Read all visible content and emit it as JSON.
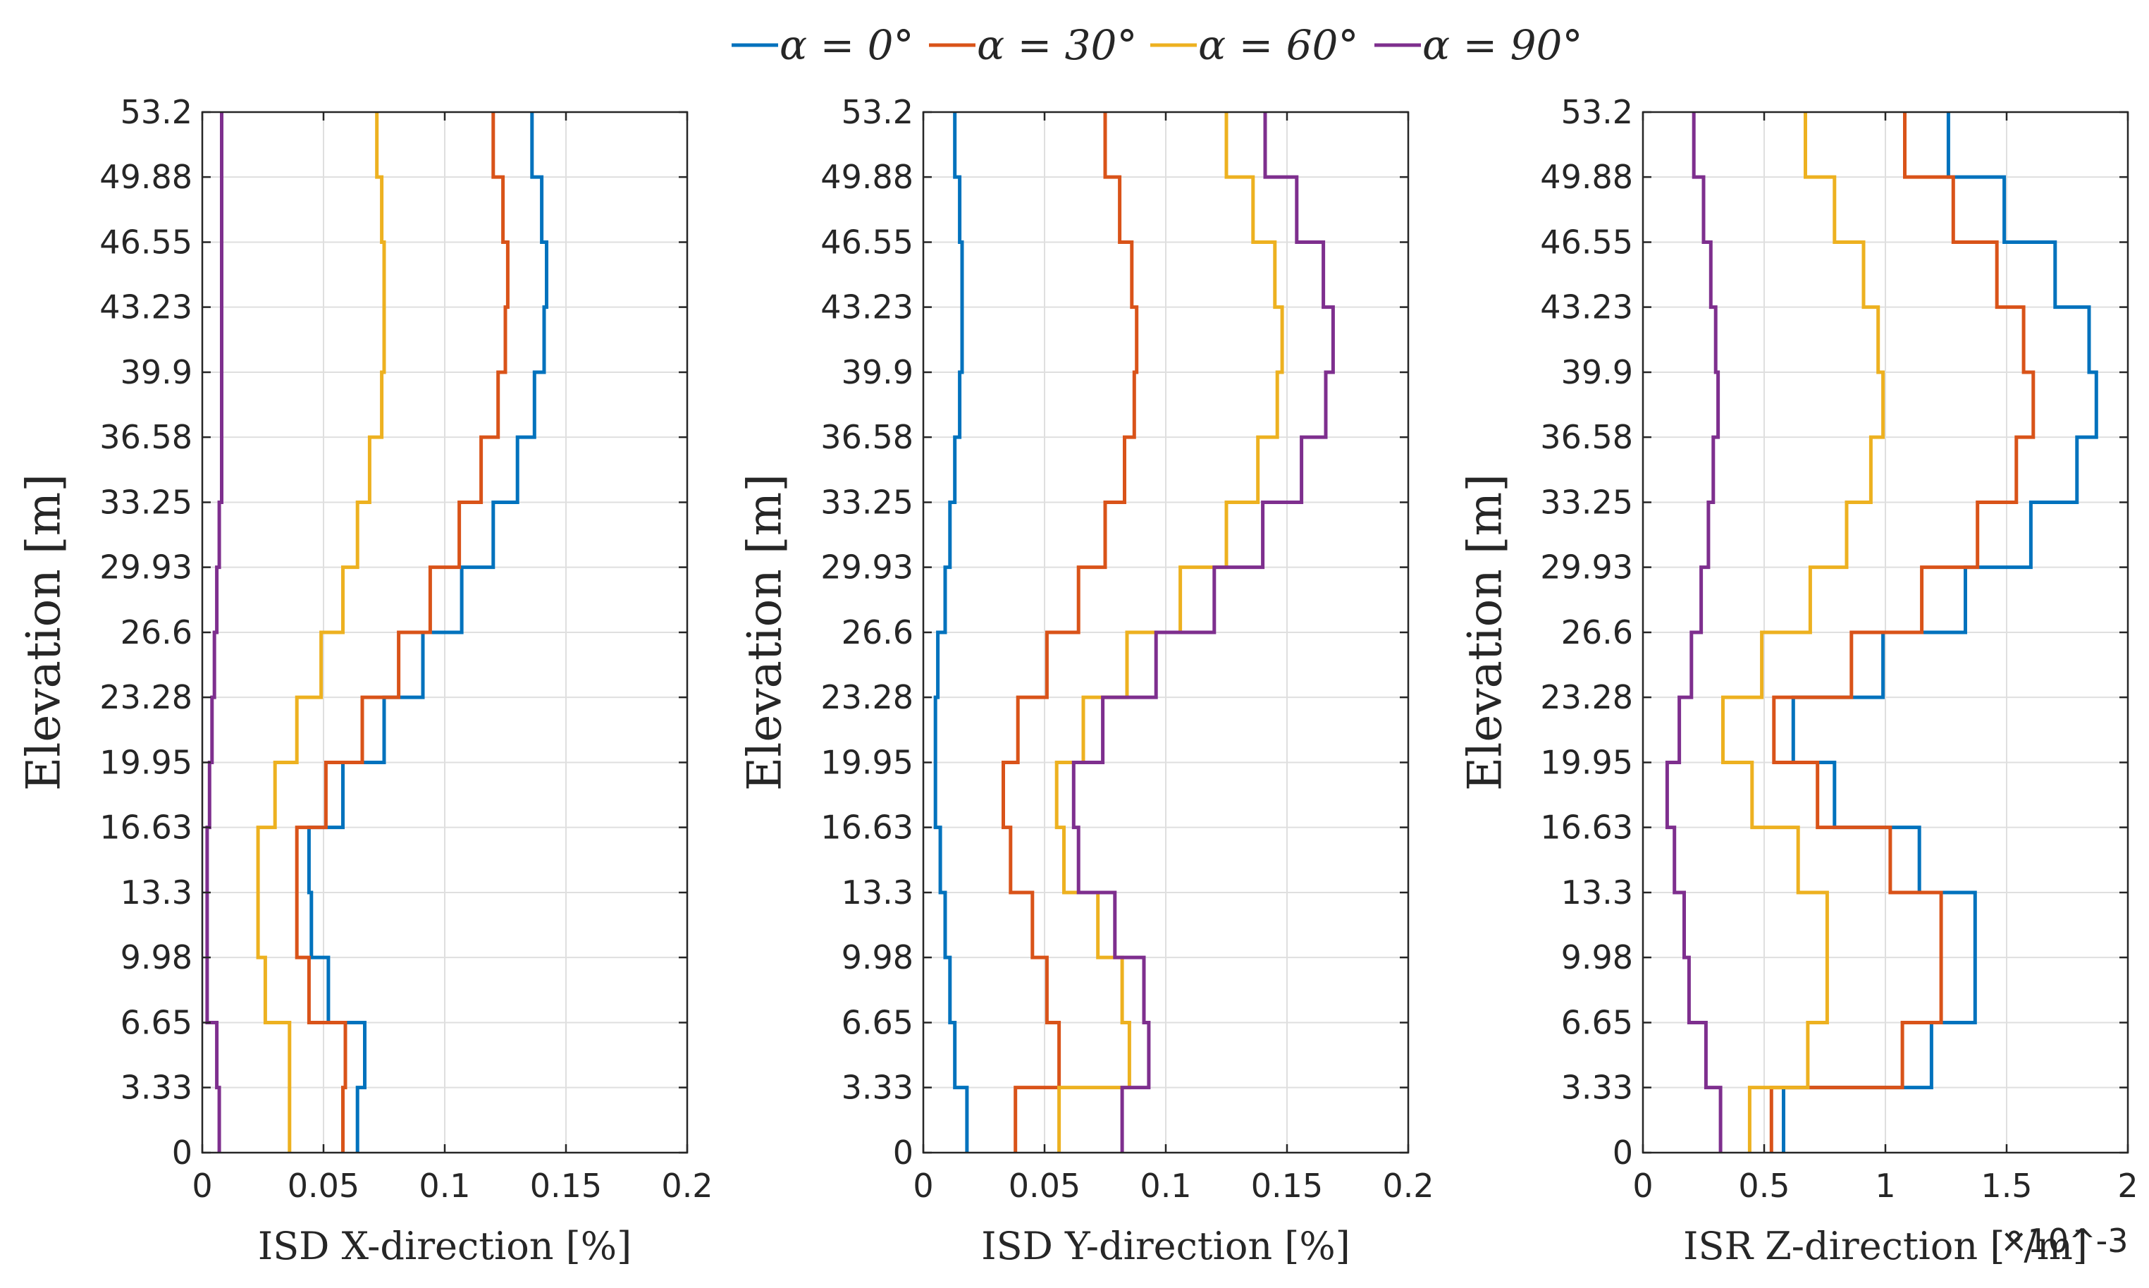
{
  "legend": {
    "items": [
      {
        "label": "α = 0°",
        "color": "#0072BD"
      },
      {
        "label": "α = 30°",
        "color": "#D95319"
      },
      {
        "label": "α = 60°",
        "color": "#EDB120"
      },
      {
        "label": "α = 90°",
        "color": "#7E2F8E"
      }
    ]
  },
  "chart_data": [
    {
      "type": "line",
      "step": true,
      "title": "",
      "xlabel": "ISD X-direction [%]",
      "ylabel": "Elevation [m]",
      "xlim": [
        0,
        0.2
      ],
      "ylim": [
        0,
        53.2
      ],
      "xticks": [
        "0",
        "0.05",
        "0.1",
        "0.15",
        "0.2"
      ],
      "yticks": [
        "0",
        "3.33",
        "6.65",
        "9.98",
        "13.3",
        "16.63",
        "19.95",
        "23.28",
        "26.6",
        "29.93",
        "33.25",
        "36.58",
        "39.9",
        "43.23",
        "46.55",
        "49.88",
        "53.2"
      ],
      "grid": true,
      "series": [
        {
          "name": "α = 0°",
          "values": [
            0.064,
            0.067,
            0.052,
            0.045,
            0.044,
            0.058,
            0.075,
            0.091,
            0.107,
            0.12,
            0.13,
            0.137,
            0.141,
            0.142,
            0.14,
            0.136
          ]
        },
        {
          "name": "α = 30°",
          "values": [
            0.058,
            0.059,
            0.044,
            0.039,
            0.039,
            0.051,
            0.066,
            0.081,
            0.094,
            0.106,
            0.115,
            0.122,
            0.125,
            0.126,
            0.124,
            0.12
          ]
        },
        {
          "name": "α = 60°",
          "values": [
            0.036,
            0.036,
            0.026,
            0.023,
            0.023,
            0.03,
            0.039,
            0.049,
            0.058,
            0.064,
            0.069,
            0.074,
            0.075,
            0.075,
            0.074,
            0.072
          ]
        },
        {
          "name": "α = 90°",
          "values": [
            0.007,
            0.006,
            0.002,
            0.002,
            0.002,
            0.003,
            0.004,
            0.005,
            0.006,
            0.007,
            0.008,
            0.008,
            0.008,
            0.008,
            0.008,
            0.008
          ]
        }
      ]
    },
    {
      "type": "line",
      "step": true,
      "title": "",
      "xlabel": "ISD Y-direction [%]",
      "ylabel": "Elevation [m]",
      "xlim": [
        0,
        0.2
      ],
      "ylim": [
        0,
        53.2
      ],
      "xticks": [
        "0",
        "0.05",
        "0.1",
        "0.15",
        "0.2"
      ],
      "yticks": [
        "0",
        "3.33",
        "6.65",
        "9.98",
        "13.3",
        "16.63",
        "19.95",
        "23.28",
        "26.6",
        "29.93",
        "33.25",
        "36.58",
        "39.9",
        "43.23",
        "46.55",
        "49.88",
        "53.2"
      ],
      "grid": true,
      "series": [
        {
          "name": "α = 0°",
          "values": [
            0.018,
            0.013,
            0.011,
            0.009,
            0.007,
            0.005,
            0.005,
            0.006,
            0.009,
            0.011,
            0.013,
            0.015,
            0.016,
            0.016,
            0.015,
            0.013
          ]
        },
        {
          "name": "α = 30°",
          "values": [
            0.038,
            0.056,
            0.051,
            0.045,
            0.036,
            0.033,
            0.039,
            0.051,
            0.064,
            0.075,
            0.083,
            0.087,
            0.088,
            0.086,
            0.081,
            0.075
          ]
        },
        {
          "name": "α = 60°",
          "values": [
            0.056,
            0.085,
            0.082,
            0.072,
            0.058,
            0.055,
            0.066,
            0.084,
            0.106,
            0.125,
            0.138,
            0.146,
            0.148,
            0.145,
            0.136,
            0.125
          ]
        },
        {
          "name": "α = 90°",
          "values": [
            0.082,
            0.093,
            0.091,
            0.079,
            0.064,
            0.062,
            0.074,
            0.096,
            0.12,
            0.14,
            0.156,
            0.166,
            0.169,
            0.165,
            0.154,
            0.141
          ]
        }
      ]
    },
    {
      "type": "line",
      "step": true,
      "title": "",
      "xlabel": "ISR Z-direction [°/m]",
      "x_exponent": "×10^-3",
      "ylabel": "Elevation [m]",
      "xlim": [
        0,
        2
      ],
      "ylim": [
        0,
        53.2
      ],
      "xticks": [
        "0",
        "0.5",
        "1",
        "1.5",
        "2"
      ],
      "yticks": [
        "0",
        "3.33",
        "6.65",
        "9.98",
        "13.3",
        "16.63",
        "19.95",
        "23.28",
        "26.6",
        "29.93",
        "33.25",
        "36.58",
        "39.9",
        "43.23",
        "46.55",
        "49.88",
        "53.2"
      ],
      "grid": true,
      "series": [
        {
          "name": "α = 0°",
          "values": [
            0.58,
            1.19,
            1.37,
            1.37,
            1.14,
            0.79,
            0.62,
            0.99,
            1.33,
            1.6,
            1.79,
            1.87,
            1.84,
            1.7,
            1.49,
            1.26
          ]
        },
        {
          "name": "α = 30°",
          "values": [
            0.53,
            1.07,
            1.23,
            1.23,
            1.02,
            0.72,
            0.54,
            0.86,
            1.15,
            1.38,
            1.54,
            1.61,
            1.57,
            1.46,
            1.28,
            1.08
          ]
        },
        {
          "name": "α = 60°",
          "values": [
            0.44,
            0.68,
            0.76,
            0.76,
            0.64,
            0.45,
            0.33,
            0.49,
            0.69,
            0.84,
            0.94,
            0.99,
            0.97,
            0.91,
            0.79,
            0.67
          ]
        },
        {
          "name": "α = 90°",
          "values": [
            0.32,
            0.26,
            0.19,
            0.17,
            0.13,
            0.1,
            0.15,
            0.2,
            0.24,
            0.27,
            0.29,
            0.31,
            0.3,
            0.28,
            0.25,
            0.21
          ]
        }
      ]
    }
  ]
}
